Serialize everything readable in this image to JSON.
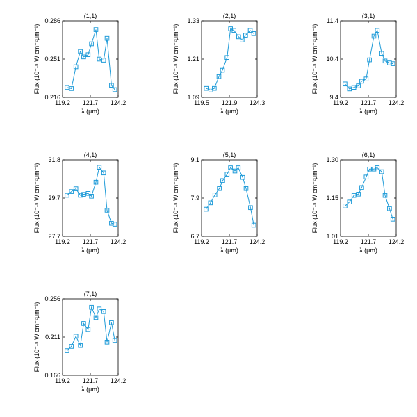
{
  "series_color": "#1f9bd8",
  "chart_data": [
    {
      "type": "line",
      "title": "(1,1)",
      "xlabel": "λ (μm)",
      "ylabel": "Flux (10⁻¹⁸ W cm⁻²μm⁻¹)",
      "xlim": [
        119.2,
        124.2
      ],
      "ylim": [
        0.216,
        0.286
      ],
      "xticks": [
        "119.2",
        "121.7",
        "124.2"
      ],
      "yticks": [
        "0.216",
        "0.251",
        "0.286"
      ],
      "grid": false,
      "marker": "square",
      "x": [
        119.6,
        120.0,
        120.4,
        120.8,
        121.1,
        121.5,
        121.8,
        122.2,
        122.5,
        122.9,
        123.2,
        123.6,
        123.9
      ],
      "y": [
        0.225,
        0.224,
        0.244,
        0.258,
        0.253,
        0.255,
        0.265,
        0.278,
        0.251,
        0.25,
        0.27,
        0.227,
        0.223
      ]
    },
    {
      "type": "line",
      "title": "(2,1)",
      "xlabel": "λ (μm)",
      "ylabel": "Flux (10⁻¹⁸ W cm⁻²μm⁻¹)",
      "xlim": [
        119.5,
        124.3
      ],
      "ylim": [
        1.09,
        1.33
      ],
      "xticks": [
        "119.5",
        "121.9",
        "124.3"
      ],
      "yticks": [
        "1.09",
        "1.21",
        "1.33"
      ],
      "grid": false,
      "marker": "square",
      "x": [
        119.9,
        120.3,
        120.6,
        121.0,
        121.3,
        121.7,
        122.0,
        122.3,
        122.7,
        123.0,
        123.3,
        123.7,
        124.0
      ],
      "y": [
        1.118,
        1.113,
        1.118,
        1.155,
        1.175,
        1.215,
        1.305,
        1.3,
        1.28,
        1.27,
        1.285,
        1.3,
        1.29
      ]
    },
    {
      "type": "line",
      "title": "(3,1)",
      "xlabel": "λ (μm)",
      "ylabel": "Flux (10⁻¹⁸ W cm⁻²μm⁻¹)",
      "xlim": [
        119.2,
        124.2
      ],
      "ylim": [
        9.4,
        11.4
      ],
      "xticks": [
        "119.2",
        "121.7",
        "124.2"
      ],
      "yticks": [
        "9.4",
        "10.4",
        "11.4"
      ],
      "grid": false,
      "marker": "square",
      "x": [
        119.6,
        120.0,
        120.4,
        120.8,
        121.1,
        121.5,
        121.8,
        122.2,
        122.5,
        122.9,
        123.2,
        123.6,
        123.9
      ],
      "y": [
        9.75,
        9.62,
        9.66,
        9.7,
        9.82,
        9.88,
        10.38,
        11.0,
        11.15,
        10.55,
        10.35,
        10.3,
        10.28
      ]
    },
    {
      "type": "line",
      "title": "(4,1)",
      "xlabel": "λ (μm)",
      "ylabel": "Flux (10⁻¹⁸ W cm⁻²μm⁻¹)",
      "xlim": [
        119.2,
        124.2
      ],
      "ylim": [
        27.7,
        31.8
      ],
      "xticks": [
        "119.2",
        "121.7",
        "124.2"
      ],
      "yticks": [
        "27.7",
        "29.7",
        "31.8"
      ],
      "grid": false,
      "marker": "square",
      "x": [
        119.6,
        120.0,
        120.4,
        120.8,
        121.1,
        121.5,
        121.8,
        122.2,
        122.5,
        122.9,
        123.2,
        123.6,
        123.9
      ],
      "y": [
        29.9,
        30.1,
        30.25,
        29.9,
        29.95,
        30.0,
        29.85,
        30.6,
        31.4,
        31.1,
        29.1,
        28.4,
        28.35
      ]
    },
    {
      "type": "line",
      "title": "(5,1)",
      "xlabel": "λ (μm)",
      "ylabel": "Flux (10⁻¹⁸ W cm⁻²μm⁻¹)",
      "xlim": [
        119.2,
        124.2
      ],
      "ylim": [
        6.7,
        9.1
      ],
      "xticks": [
        "119.2",
        "121.7",
        "124.2"
      ],
      "yticks": [
        "6.7",
        "7.9",
        "9.1"
      ],
      "grid": false,
      "marker": "square",
      "x": [
        119.6,
        120.0,
        120.4,
        120.8,
        121.1,
        121.5,
        121.8,
        122.2,
        122.5,
        122.9,
        123.2,
        123.6,
        123.9
      ],
      "y": [
        7.55,
        7.75,
        8.0,
        8.2,
        8.45,
        8.65,
        8.85,
        8.75,
        8.85,
        8.55,
        8.2,
        7.6,
        7.05
      ]
    },
    {
      "type": "line",
      "title": "(6,1)",
      "xlabel": "λ (μm)",
      "ylabel": "Flux (10⁻¹⁸ W cm⁻²μm⁻¹)",
      "xlim": [
        119.2,
        124.2
      ],
      "ylim": [
        1.01,
        1.3
      ],
      "xticks": [
        "119.2",
        "121.7",
        "124.2"
      ],
      "yticks": [
        "1.01",
        "1.15",
        "1.30"
      ],
      "grid": false,
      "marker": "square",
      "x": [
        119.6,
        120.0,
        120.4,
        120.8,
        121.1,
        121.5,
        121.8,
        122.2,
        122.5,
        122.9,
        123.2,
        123.6,
        123.9
      ],
      "y": [
        1.125,
        1.14,
        1.165,
        1.17,
        1.195,
        1.235,
        1.265,
        1.265,
        1.27,
        1.255,
        1.165,
        1.115,
        1.075
      ]
    },
    {
      "type": "line",
      "title": "(7,1)",
      "xlabel": "λ (μm)",
      "ylabel": "Flux (10⁻¹⁸ W cm⁻²μm⁻¹)",
      "xlim": [
        119.2,
        124.2
      ],
      "ylim": [
        0.166,
        0.256
      ],
      "xticks": [
        "119.2",
        "121.7",
        "124.2"
      ],
      "yticks": [
        "0.166",
        "0.211",
        "0.256"
      ],
      "grid": false,
      "marker": "square",
      "x": [
        119.6,
        120.0,
        120.4,
        120.8,
        121.1,
        121.5,
        121.8,
        122.2,
        122.5,
        122.9,
        123.2,
        123.6,
        123.9
      ],
      "y": [
        0.195,
        0.2,
        0.212,
        0.201,
        0.227,
        0.22,
        0.246,
        0.234,
        0.244,
        0.241,
        0.205,
        0.228,
        0.207
      ]
    }
  ]
}
